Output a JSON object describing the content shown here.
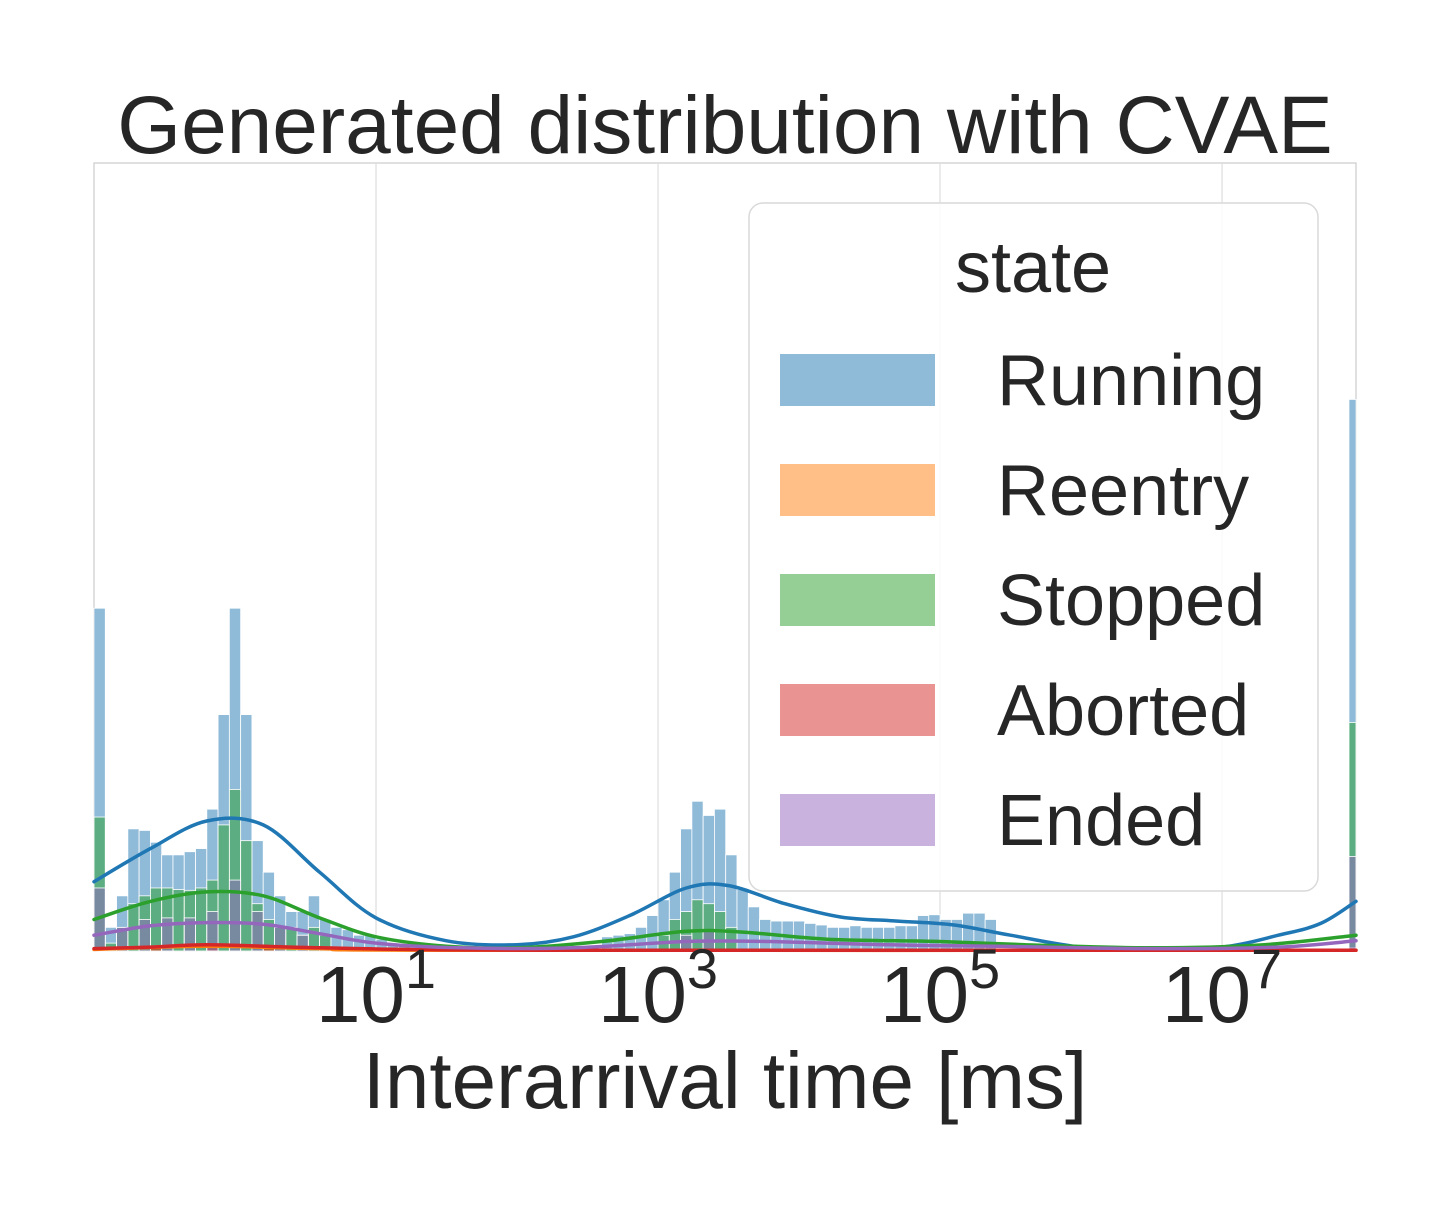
{
  "chart_data": {
    "type": "histogram",
    "title": "Generated distribution with CVAE",
    "xlabel": "Interarrival time [ms]",
    "ylabel": "",
    "xscale": "log",
    "xlim_log10": [
      -1.0,
      7.95
    ],
    "ylim": [
      0,
      1.0
    ],
    "grid": true,
    "legend": {
      "title": "state",
      "placement": "top-right"
    },
    "xticks": [
      {
        "base": "10",
        "exp": "1",
        "log10": 1
      },
      {
        "base": "10",
        "exp": "3",
        "log10": 3
      },
      {
        "base": "10",
        "exp": "5",
        "log10": 5
      },
      {
        "base": "10",
        "exp": "7",
        "log10": 7
      }
    ],
    "bin_width_log10": 0.08,
    "series": [
      {
        "name": "Running",
        "color": "#1f77b4",
        "bins": [
          [
            -1.0,
            0.435
          ],
          [
            -0.92,
            0.03
          ],
          [
            -0.84,
            0.07
          ],
          [
            -0.76,
            0.155
          ],
          [
            -0.68,
            0.153
          ],
          [
            -0.6,
            0.138
          ],
          [
            -0.52,
            0.122
          ],
          [
            -0.44,
            0.122
          ],
          [
            -0.36,
            0.126
          ],
          [
            -0.28,
            0.13
          ],
          [
            -0.2,
            0.18
          ],
          [
            -0.12,
            0.3
          ],
          [
            -0.04,
            0.435
          ],
          [
            0.04,
            0.3
          ],
          [
            0.12,
            0.14
          ],
          [
            0.2,
            0.1
          ],
          [
            0.28,
            0.07
          ],
          [
            0.36,
            0.05
          ],
          [
            0.44,
            0.05
          ],
          [
            0.52,
            0.07
          ],
          [
            0.6,
            0.04
          ],
          [
            0.68,
            0.03
          ],
          [
            0.76,
            0.027
          ],
          [
            0.84,
            0.02
          ],
          [
            0.92,
            0.02
          ],
          [
            1.0,
            0.015
          ],
          [
            1.08,
            0.01
          ],
          [
            1.16,
            0.008
          ],
          [
            2.6,
            0.018
          ],
          [
            2.68,
            0.02
          ],
          [
            2.76,
            0.022
          ],
          [
            2.84,
            0.03
          ],
          [
            2.92,
            0.045
          ],
          [
            3.0,
            0.065
          ],
          [
            3.08,
            0.1
          ],
          [
            3.16,
            0.155
          ],
          [
            3.24,
            0.19
          ],
          [
            3.32,
            0.172
          ],
          [
            3.4,
            0.18
          ],
          [
            3.48,
            0.122
          ],
          [
            3.56,
            0.078
          ],
          [
            3.64,
            0.056
          ],
          [
            3.72,
            0.04
          ],
          [
            3.8,
            0.038
          ],
          [
            3.88,
            0.038
          ],
          [
            3.96,
            0.038
          ],
          [
            4.04,
            0.035
          ],
          [
            4.12,
            0.033
          ],
          [
            4.2,
            0.03
          ],
          [
            4.28,
            0.03
          ],
          [
            4.36,
            0.032
          ],
          [
            4.44,
            0.03
          ],
          [
            4.52,
            0.03
          ],
          [
            4.6,
            0.03
          ],
          [
            4.68,
            0.032
          ],
          [
            4.76,
            0.032
          ],
          [
            4.84,
            0.045
          ],
          [
            4.92,
            0.046
          ],
          [
            5.0,
            0.04
          ],
          [
            5.08,
            0.04
          ],
          [
            5.16,
            0.048
          ],
          [
            5.24,
            0.048
          ],
          [
            5.32,
            0.04
          ],
          [
            7.9,
            0.7
          ]
        ],
        "kde": [
          [
            -1.0,
            0.088
          ],
          [
            -0.6,
            0.13
          ],
          [
            -0.2,
            0.165
          ],
          [
            0.2,
            0.16
          ],
          [
            0.6,
            0.1
          ],
          [
            1.0,
            0.042
          ],
          [
            1.5,
            0.013
          ],
          [
            2.0,
            0.008
          ],
          [
            2.4,
            0.018
          ],
          [
            2.8,
            0.045
          ],
          [
            3.2,
            0.08
          ],
          [
            3.5,
            0.083
          ],
          [
            3.9,
            0.06
          ],
          [
            4.3,
            0.043
          ],
          [
            4.7,
            0.038
          ],
          [
            5.1,
            0.033
          ],
          [
            5.5,
            0.02
          ],
          [
            6.0,
            0.005
          ],
          [
            6.5,
            0.003
          ],
          [
            7.0,
            0.005
          ],
          [
            7.4,
            0.02
          ],
          [
            7.7,
            0.035
          ],
          [
            7.95,
            0.063
          ]
        ]
      },
      {
        "name": "Reentry",
        "color": "#ff7f0e",
        "bins": [
          [
            -0.6,
            0.004
          ],
          [
            -0.2,
            0.006
          ],
          [
            0.2,
            0.004
          ],
          [
            7.9,
            0.003
          ]
        ],
        "kde": [
          [
            -1.0,
            0.002
          ],
          [
            -0.2,
            0.006
          ],
          [
            0.6,
            0.003
          ],
          [
            1.5,
            0.001
          ],
          [
            7.95,
            0.001
          ]
        ]
      },
      {
        "name": "Stopped",
        "color": "#2ca02c",
        "bins": [
          [
            -1.0,
            0.17
          ],
          [
            -0.92,
            0.01
          ],
          [
            -0.84,
            0.03
          ],
          [
            -0.76,
            0.06
          ],
          [
            -0.68,
            0.07
          ],
          [
            -0.6,
            0.08
          ],
          [
            -0.52,
            0.08
          ],
          [
            -0.44,
            0.078
          ],
          [
            -0.36,
            0.077
          ],
          [
            -0.28,
            0.08
          ],
          [
            -0.2,
            0.09
          ],
          [
            -0.12,
            0.16
          ],
          [
            -0.04,
            0.205
          ],
          [
            0.04,
            0.14
          ],
          [
            0.12,
            0.06
          ],
          [
            0.2,
            0.04
          ],
          [
            0.28,
            0.03
          ],
          [
            0.36,
            0.03
          ],
          [
            0.44,
            0.02
          ],
          [
            0.52,
            0.03
          ],
          [
            0.6,
            0.02
          ],
          [
            3.0,
            0.02
          ],
          [
            3.08,
            0.04
          ],
          [
            3.16,
            0.05
          ],
          [
            3.24,
            0.065
          ],
          [
            3.32,
            0.06
          ],
          [
            3.4,
            0.05
          ],
          [
            3.48,
            0.03
          ],
          [
            7.9,
            0.29
          ]
        ],
        "kde": [
          [
            -1.0,
            0.04
          ],
          [
            -0.6,
            0.063
          ],
          [
            -0.2,
            0.075
          ],
          [
            0.2,
            0.07
          ],
          [
            0.6,
            0.042
          ],
          [
            1.0,
            0.018
          ],
          [
            1.5,
            0.006
          ],
          [
            2.0,
            0.004
          ],
          [
            2.6,
            0.012
          ],
          [
            3.2,
            0.025
          ],
          [
            3.6,
            0.024
          ],
          [
            4.2,
            0.015
          ],
          [
            5.0,
            0.012
          ],
          [
            5.6,
            0.008
          ],
          [
            6.5,
            0.004
          ],
          [
            7.3,
            0.008
          ],
          [
            7.95,
            0.02
          ]
        ]
      },
      {
        "name": "Aborted",
        "color": "#d62728",
        "bins": [
          [
            -0.6,
            0.005
          ],
          [
            -0.2,
            0.008
          ],
          [
            0.2,
            0.006
          ],
          [
            7.9,
            0.004
          ]
        ],
        "kde": [
          [
            -1.0,
            0.003
          ],
          [
            -0.6,
            0.005
          ],
          [
            -0.2,
            0.008
          ],
          [
            0.4,
            0.005
          ],
          [
            1.2,
            0.002
          ],
          [
            2.5,
            0.001
          ],
          [
            7.95,
            0.001
          ]
        ]
      },
      {
        "name": "Ended",
        "color": "#9467bd",
        "bins": [
          [
            -1.0,
            0.08
          ],
          [
            -0.84,
            0.03
          ],
          [
            -0.68,
            0.04
          ],
          [
            -0.52,
            0.042
          ],
          [
            -0.36,
            0.042
          ],
          [
            -0.2,
            0.05
          ],
          [
            -0.04,
            0.09
          ],
          [
            0.12,
            0.05
          ],
          [
            0.28,
            0.03
          ],
          [
            0.44,
            0.02
          ],
          [
            3.16,
            0.02
          ],
          [
            3.32,
            0.025
          ],
          [
            7.9,
            0.12
          ]
        ],
        "kde": [
          [
            -1.0,
            0.02
          ],
          [
            -0.6,
            0.032
          ],
          [
            -0.2,
            0.036
          ],
          [
            0.2,
            0.034
          ],
          [
            0.6,
            0.022
          ],
          [
            1.0,
            0.01
          ],
          [
            1.6,
            0.004
          ],
          [
            2.4,
            0.004
          ],
          [
            3.2,
            0.012
          ],
          [
            3.8,
            0.012
          ],
          [
            4.6,
            0.008
          ],
          [
            5.4,
            0.006
          ],
          [
            6.5,
            0.003
          ],
          [
            7.4,
            0.005
          ],
          [
            7.95,
            0.013
          ]
        ]
      }
    ]
  }
}
